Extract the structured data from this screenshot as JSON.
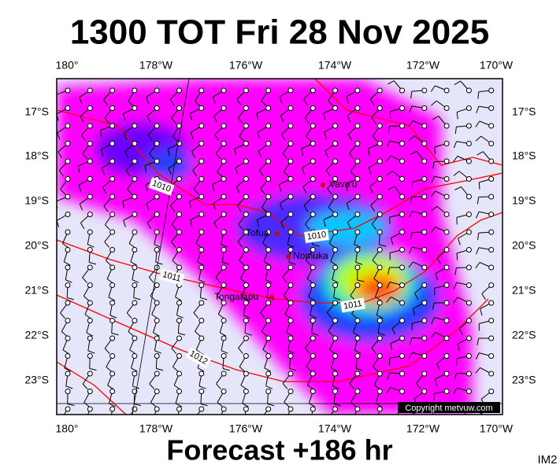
{
  "title": "1300 TOT Fri 28 Nov 2025",
  "footer": "Forecast +186 hr",
  "image_tag": "IM2",
  "copyright": "Copyright metvuw.com",
  "lon_labels": [
    "180°",
    "178°W",
    "176°W",
    "174°W",
    "172°W",
    "170°W"
  ],
  "lat_labels": [
    "17°S",
    "18°S",
    "19°S",
    "20°S",
    "21°S",
    "22°S",
    "23°S"
  ],
  "places": [
    "Vava'u",
    "Tofua",
    "Nomuka",
    "Tongatapu"
  ],
  "isobar_labels": [
    "1010",
    "1010",
    "1011",
    "1011",
    "1012"
  ]
}
